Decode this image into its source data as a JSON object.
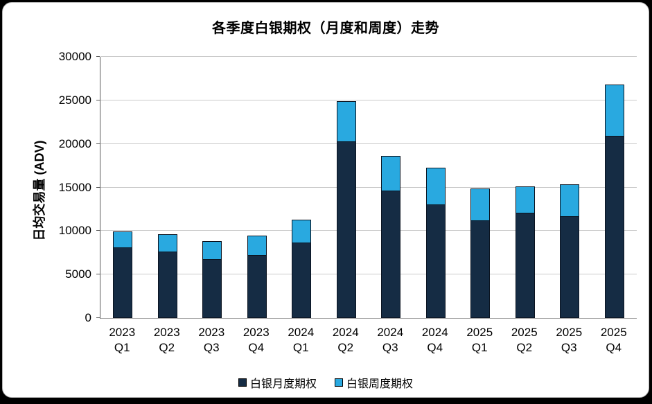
{
  "chart_data": {
    "type": "bar",
    "stacked": true,
    "title": "各季度白银期权（月度和周度）走势",
    "xlabel": "",
    "ylabel": "日均交易量 (ADV)",
    "categories": [
      "2023 Q1",
      "2023 Q2",
      "2023 Q3",
      "2023 Q4",
      "2024 Q1",
      "2024 Q2",
      "2024 Q3",
      "2024 Q4",
      "2025 Q1",
      "2025 Q2",
      "2025 Q3",
      "2025 Q4"
    ],
    "series": [
      {
        "name": "白银月度期权",
        "color": "#152C44",
        "values": [
          8150,
          7650,
          6800,
          7250,
          8700,
          20300,
          14650,
          13050,
          11250,
          12100,
          11700,
          20900
        ]
      },
      {
        "name": "白银周度期权",
        "color": "#29A9E0",
        "values": [
          1800,
          1950,
          2100,
          2250,
          2600,
          4600,
          4000,
          4200,
          3650,
          3000,
          3700,
          5900
        ]
      }
    ],
    "totals": [
      9950,
      9600,
      8900,
      9500,
      11300,
      24900,
      18650,
      17250,
      14900,
      15100,
      15400,
      26800
    ],
    "ylim": [
      0,
      30000
    ],
    "yticks": [
      0,
      5000,
      10000,
      15000,
      20000,
      25000,
      30000
    ],
    "grid": "horizontal",
    "legend_position": "bottom"
  },
  "colors": {
    "gridline": "#c9c9c9",
    "y_axis": "#595959",
    "x_axis": "#a6a6a6",
    "bar_border": "#0a1320",
    "frame": "#000000",
    "panel": "#ffffff"
  }
}
